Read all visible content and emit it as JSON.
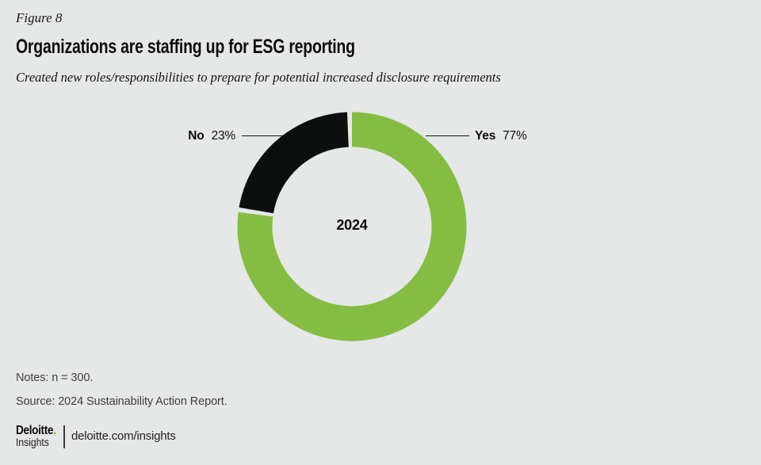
{
  "figure_label": "Figure 8",
  "title": "Organizations are staffing up for ESG reporting",
  "subtitle": "Created new roles/responsibilities to prepare for potential increased disclosure requirements",
  "chart_data": {
    "type": "pie",
    "subtype": "donut",
    "title": "Created new roles/responsibilities to prepare for potential increased disclosure requirements",
    "center_label": "2024",
    "start_angle_deg": 0,
    "direction": "clockwise",
    "legend_position": "callout-lines",
    "segments": [
      {
        "label": "Yes",
        "value_pct": 77,
        "value_label": "77%",
        "color": "#84bd42"
      },
      {
        "label": "No",
        "value_pct": 23,
        "value_label": "23%",
        "color": "#0d0f0e"
      }
    ]
  },
  "notes": "Notes: n = 300.",
  "source": "Source: 2024 Sustainability Action Report.",
  "footer": {
    "brand_primary": "Deloitte",
    "brand_dot": ".",
    "brand_secondary": "Insights",
    "url": "deloitte.com/insights"
  },
  "colors": {
    "background": "#e6e7e7",
    "accent_green": "#84bd42",
    "logo_dot_green": "#86bc25",
    "segment_black": "#0d0f0e",
    "text_primary": "#0d0d0d",
    "text_muted": "#3e3e3e"
  }
}
